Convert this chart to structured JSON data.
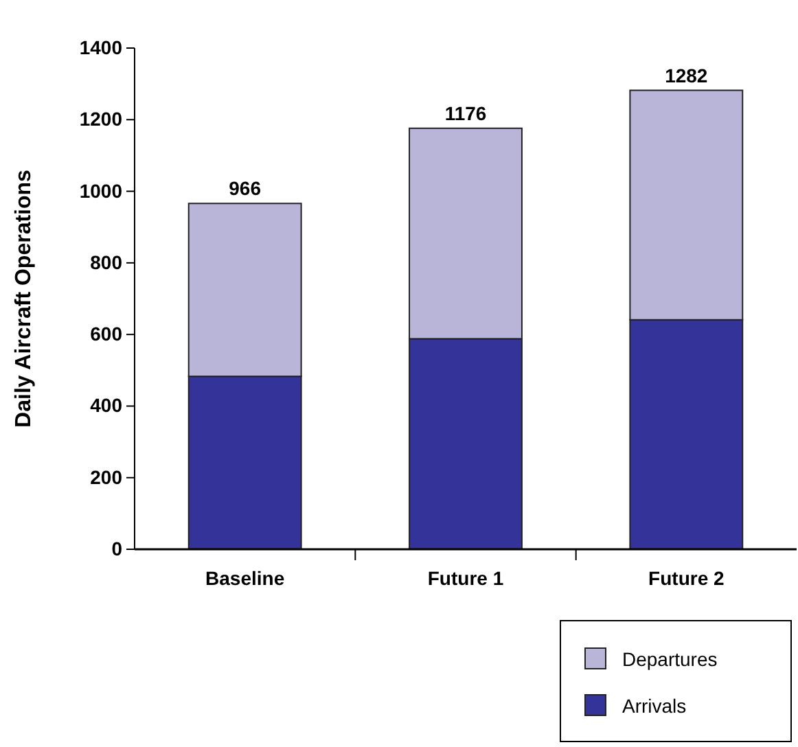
{
  "chart_data": {
    "type": "bar",
    "ylabel": "Daily Aircraft Operations",
    "categories": [
      "Baseline",
      "Future 1",
      "Future 2"
    ],
    "stacked": true,
    "series": [
      {
        "name": "Arrivals",
        "color": "#333399",
        "values": [
          483,
          588,
          641
        ]
      },
      {
        "name": "Departures",
        "color": "#b9b5d9",
        "values": [
          483,
          588,
          641
        ]
      }
    ],
    "totals": [
      "966",
      "1176",
      "1282"
    ],
    "ylim": [
      0,
      1400
    ],
    "yticks": [
      0,
      200,
      400,
      600,
      800,
      1000,
      1200,
      1400
    ],
    "grid": false,
    "legend": "bottom right"
  }
}
